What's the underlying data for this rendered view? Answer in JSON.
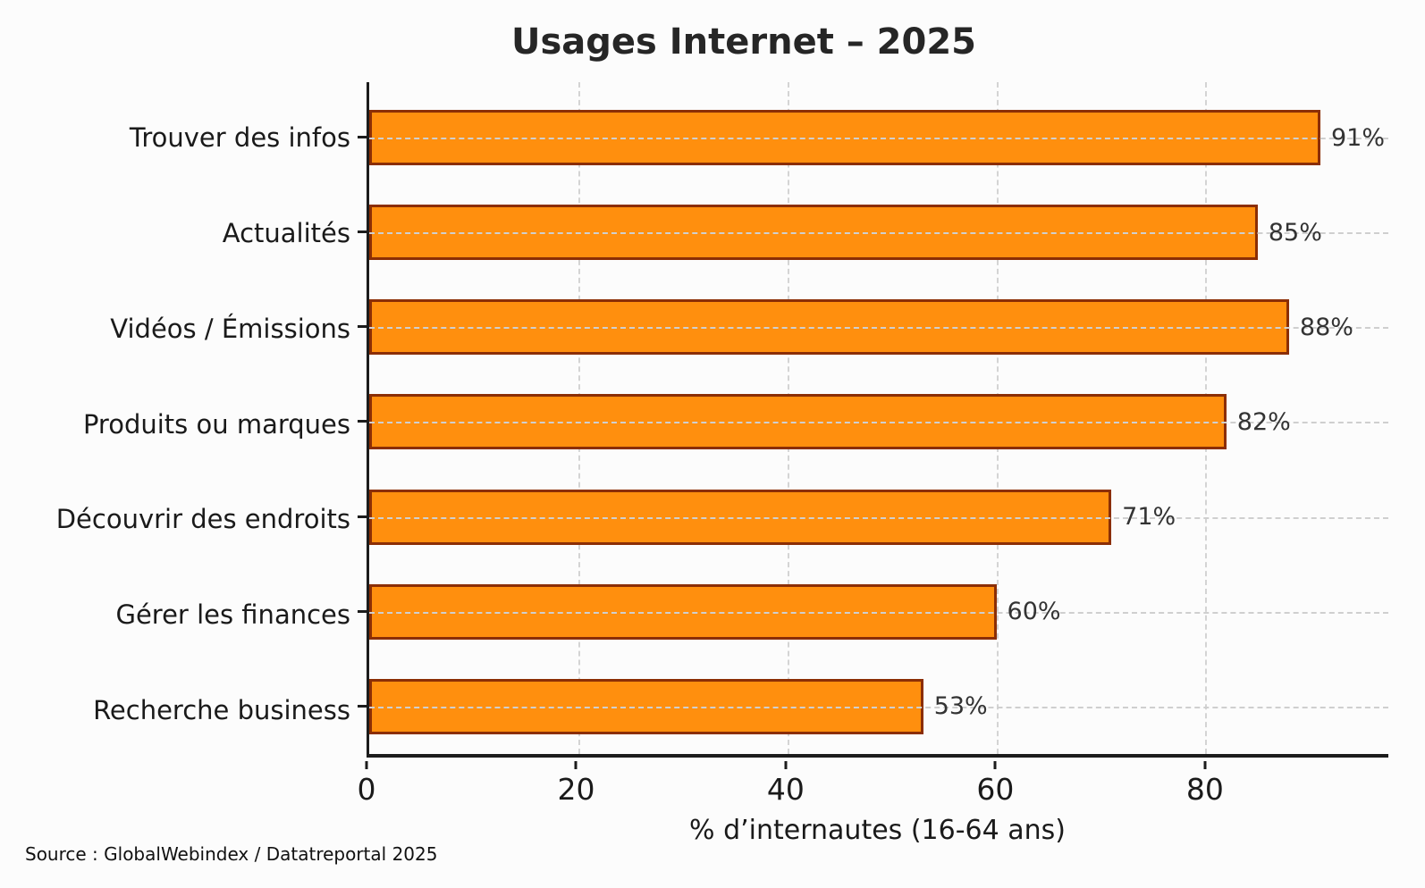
{
  "header": {
    "title": "Usages Internet – 2025"
  },
  "chart_data": {
    "type": "bar",
    "orientation": "horizontal",
    "title": "Usages Internet – 2025",
    "categories": [
      "Trouver des infos",
      "Actualités",
      "Vidéos / Émissions",
      "Produits ou marques",
      "Découvrir des endroits",
      "Gérer les finances",
      "Recherche business"
    ],
    "values": [
      91,
      85,
      88,
      82,
      71,
      60,
      53
    ],
    "value_labels": [
      "91%",
      "85%",
      "88%",
      "82%",
      "71%",
      "60%",
      "53%"
    ],
    "xlabel": "% d’internautes (16-64 ans)",
    "ylabel": "",
    "xlim": [
      0,
      97.5
    ],
    "xticks": [
      0,
      20,
      40,
      60,
      80
    ],
    "grid": "dashed horizontal and vertical, light gray",
    "legend": "none",
    "bar_color": "#ff8f0e",
    "bar_edge_color": "#8b2e05",
    "spine_color": "#1c1c1c"
  },
  "footer": {
    "source": "Source : GlobalWebindex / Datatreportal 2025"
  }
}
